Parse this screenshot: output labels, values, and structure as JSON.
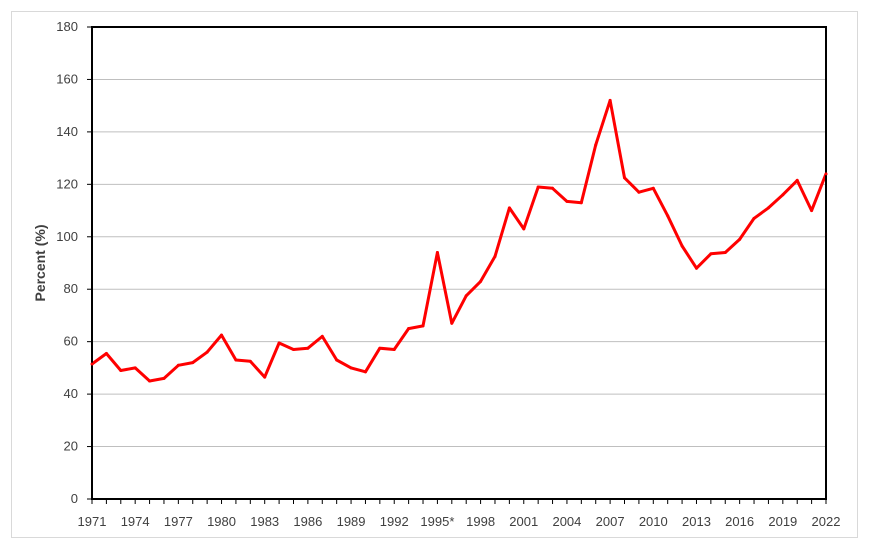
{
  "chart_data": {
    "type": "line",
    "title": "",
    "xlabel": "",
    "ylabel": "Percent (%)",
    "ylim": [
      0,
      180
    ],
    "yticks": [
      0,
      20,
      40,
      60,
      80,
      100,
      120,
      140,
      160,
      180
    ],
    "grid": true,
    "xtick_labels": [
      "1971",
      "1974",
      "1977",
      "1980",
      "1983",
      "1986",
      "1989",
      "1992",
      "1995*",
      "1998",
      "2001",
      "2004",
      "2007",
      "2010",
      "2013",
      "2016",
      "2019",
      "2022"
    ],
    "x": [
      1971,
      1972,
      1973,
      1974,
      1975,
      1976,
      1977,
      1978,
      1979,
      1980,
      1981,
      1982,
      1983,
      1984,
      1985,
      1986,
      1987,
      1988,
      1989,
      1990,
      1991,
      1992,
      1993,
      1994,
      1995,
      1996,
      1997,
      1998,
      1999,
      2000,
      2001,
      2002,
      2003,
      2004,
      2005,
      2006,
      2007,
      2008,
      2009,
      2010,
      2011,
      2012,
      2013,
      2014,
      2015,
      2016,
      2017,
      2018,
      2019,
      2020,
      2021,
      2022
    ],
    "series": [
      {
        "name": "Percent",
        "color": "#ff0000",
        "values": [
          51.5,
          55.5,
          49,
          50,
          45,
          46,
          51,
          52,
          56,
          62.5,
          53,
          52.5,
          46.5,
          59.5,
          57,
          57.5,
          62,
          53,
          50,
          48.5,
          57.5,
          57,
          65,
          66,
          94,
          67,
          77.5,
          83,
          92.5,
          111,
          103,
          119,
          118.5,
          113.5,
          113,
          135,
          152,
          122.5,
          117,
          118.5,
          108,
          96.5,
          88,
          93.5,
          94,
          99,
          107,
          111,
          116,
          121.5,
          110,
          124
        ]
      }
    ]
  }
}
